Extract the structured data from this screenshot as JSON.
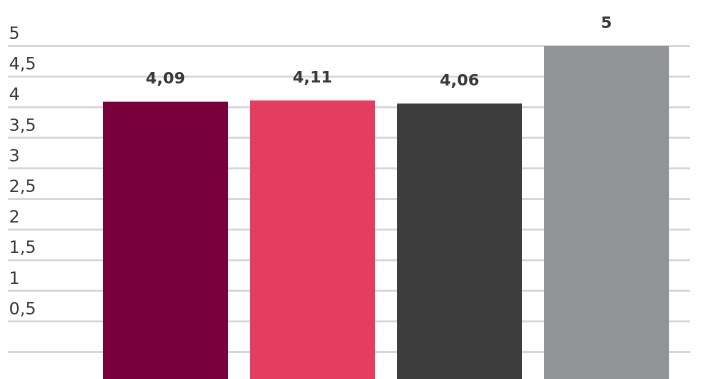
{
  "chart_data": {
    "type": "bar",
    "categories": [
      "",
      "",
      "",
      ""
    ],
    "values": [
      4.09,
      4.11,
      4.06,
      5
    ],
    "data_labels": [
      "4,09",
      "4,11",
      "4,06",
      "5"
    ],
    "colors": [
      "#7a003c",
      "#e43d60",
      "#3d3d3d",
      "#939496"
    ],
    "ylim": [
      0,
      5
    ],
    "yticks": [
      0.5,
      1,
      1.5,
      2,
      2.5,
      3,
      3.5,
      4,
      4.5,
      5
    ],
    "ytick_labels": [
      "0,5",
      "1",
      "1,5",
      "2",
      "2,5",
      "3",
      "3,5",
      "4",
      "4,5",
      "5"
    ],
    "grid": true,
    "title": "",
    "xlabel": "",
    "ylabel": ""
  }
}
